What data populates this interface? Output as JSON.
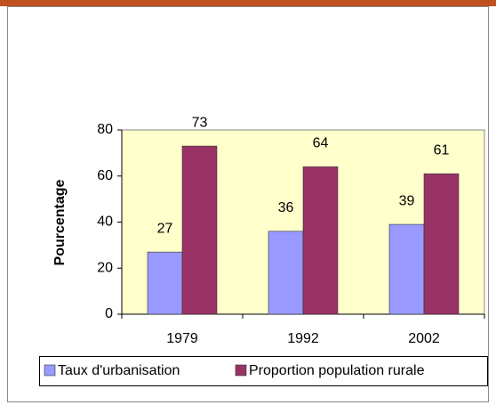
{
  "chart_data": {
    "type": "bar",
    "categories": [
      "1979",
      "1992",
      "2002"
    ],
    "series": [
      {
        "name": "Taux d'urbanisation",
        "color": "#9999ff",
        "values": [
          27,
          36,
          39
        ]
      },
      {
        "name": "Proportion population rurale",
        "color": "#993366",
        "values": [
          73,
          64,
          61
        ]
      }
    ],
    "y_label": "Pourcentage",
    "ylim": [
      0,
      80
    ],
    "yticks": [
      0,
      20,
      40,
      60,
      80
    ],
    "plot_background": "#ffffcc",
    "legend": "bottom"
  }
}
